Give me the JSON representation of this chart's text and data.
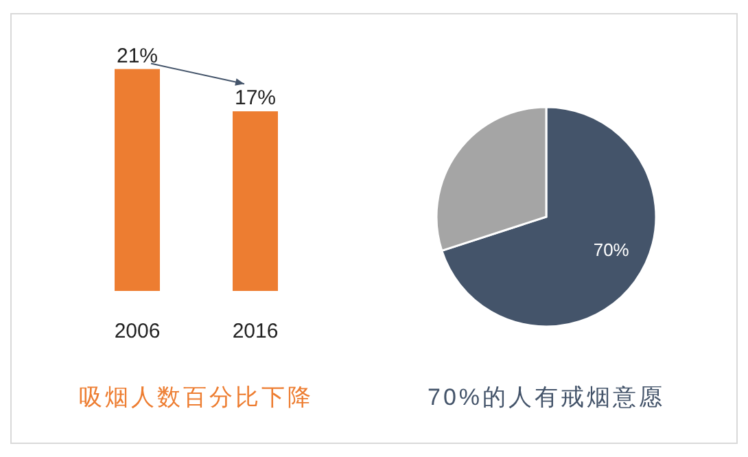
{
  "chart_data": [
    {
      "type": "bar",
      "title": "吸烟人数百分比下降",
      "categories": [
        "2006",
        "2016"
      ],
      "values": [
        21,
        17
      ],
      "value_labels": [
        "21%",
        "17%"
      ],
      "color": "#ed7d31"
    },
    {
      "type": "pie",
      "title": "70%的人有戒烟意愿",
      "categories": [
        null,
        null
      ],
      "values": [
        70,
        30
      ],
      "colors": [
        "#44546a",
        "#a5a5a5"
      ],
      "value_labels": [
        "70%",
        null
      ]
    }
  ]
}
